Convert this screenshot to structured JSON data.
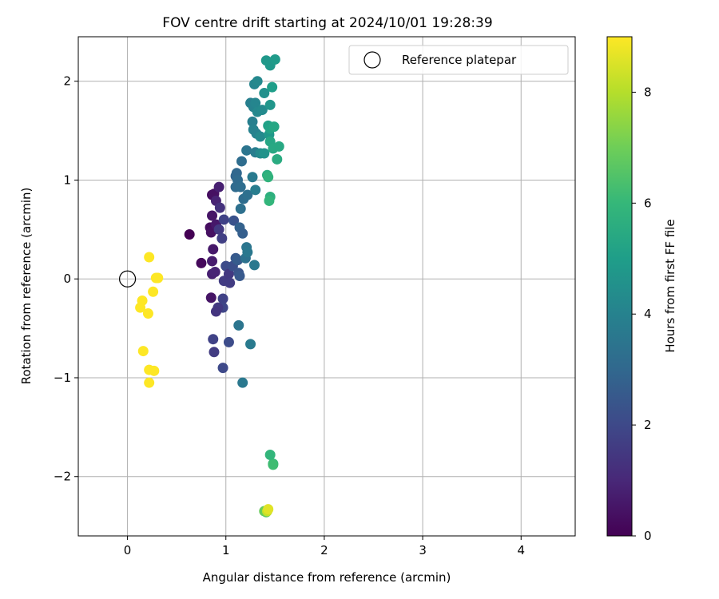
{
  "chart_data": {
    "type": "scatter",
    "title": "FOV centre drift starting at 2024/10/01 19:28:39",
    "xlabel": "Angular distance from reference (arcmin)",
    "ylabel": "Rotation from reference (arcmin)",
    "xlim": [
      -0.5,
      4.55
    ],
    "ylim": [
      -2.6,
      2.45
    ],
    "grid": true,
    "x_ticks": [
      {
        "v": 0,
        "label": "0"
      },
      {
        "v": 1,
        "label": "1"
      },
      {
        "v": 2,
        "label": "2"
      },
      {
        "v": 3,
        "label": "3"
      },
      {
        "v": 4,
        "label": "4"
      }
    ],
    "y_ticks": [
      {
        "v": -2,
        "label": "−2"
      },
      {
        "v": -1,
        "label": "−1"
      },
      {
        "v": 0,
        "label": "0"
      },
      {
        "v": 1,
        "label": "1"
      },
      {
        "v": 2,
        "label": "2"
      }
    ],
    "legend": {
      "position": "top-right",
      "label": "Reference platepar",
      "marker": "open-circle"
    },
    "reference_point": {
      "x": 0,
      "y": 0
    },
    "colorbar": {
      "label": "Hours from first FF file",
      "colormap": "viridis",
      "range": [
        0,
        9
      ],
      "ticks": [
        {
          "v": 0,
          "label": "0"
        },
        {
          "v": 2,
          "label": "2"
        },
        {
          "v": 4,
          "label": "4"
        },
        {
          "v": 6,
          "label": "6"
        },
        {
          "v": 8,
          "label": "8"
        }
      ]
    },
    "colormap_stops": [
      "#440154",
      "#482878",
      "#3e4989",
      "#31688e",
      "#26828e",
      "#1f9e89",
      "#35b779",
      "#6ece58",
      "#b5de2b",
      "#fde725"
    ],
    "points": [
      {
        "x": 0.63,
        "y": 0.45,
        "c": 0.0
      },
      {
        "x": 0.86,
        "y": 0.85,
        "c": 0.3
      },
      {
        "x": 0.88,
        "y": 0.86,
        "c": 0.4
      },
      {
        "x": 0.84,
        "y": 0.52,
        "c": 0.3
      },
      {
        "x": 0.85,
        "y": 0.47,
        "c": 0.4
      },
      {
        "x": 0.75,
        "y": 0.16,
        "c": 0.2
      },
      {
        "x": 0.86,
        "y": 0.64,
        "c": 0.5
      },
      {
        "x": 0.9,
        "y": 0.55,
        "c": 0.6
      },
      {
        "x": 0.87,
        "y": 0.3,
        "c": 0.6
      },
      {
        "x": 0.86,
        "y": 0.18,
        "c": 0.7
      },
      {
        "x": 0.86,
        "y": 0.05,
        "c": 0.8
      },
      {
        "x": 0.89,
        "y": 0.07,
        "c": 0.9
      },
      {
        "x": 0.85,
        "y": -0.19,
        "c": 0.5
      },
      {
        "x": 0.93,
        "y": 0.93,
        "c": 0.8
      },
      {
        "x": 0.9,
        "y": 0.79,
        "c": 0.9
      },
      {
        "x": 0.94,
        "y": 0.72,
        "c": 1.3
      },
      {
        "x": 0.93,
        "y": 0.5,
        "c": 1.5
      },
      {
        "x": 0.96,
        "y": 0.41,
        "c": 1.7
      },
      {
        "x": 0.98,
        "y": 0.6,
        "c": 1.8
      },
      {
        "x": 0.98,
        "y": -0.02,
        "c": 1.6
      },
      {
        "x": 0.97,
        "y": -0.2,
        "c": 1.8
      },
      {
        "x": 0.97,
        "y": -0.29,
        "c": 1.9
      },
      {
        "x": 0.92,
        "y": -0.29,
        "c": 1.5
      },
      {
        "x": 0.9,
        "y": -0.33,
        "c": 1.4
      },
      {
        "x": 0.87,
        "y": -0.61,
        "c": 1.8
      },
      {
        "x": 0.88,
        "y": -0.74,
        "c": 1.6
      },
      {
        "x": 0.97,
        "y": -0.9,
        "c": 2.0
      },
      {
        "x": 1.03,
        "y": -0.64,
        "c": 2.1
      },
      {
        "x": 1.0,
        "y": 0.13,
        "c": 2.1
      },
      {
        "x": 1.03,
        "y": 0.05,
        "c": 1.5
      },
      {
        "x": 1.04,
        "y": -0.04,
        "c": 1.6
      },
      {
        "x": 1.07,
        "y": 0.13,
        "c": 2.2
      },
      {
        "x": 1.08,
        "y": 0.59,
        "c": 2.3
      },
      {
        "x": 1.1,
        "y": 0.21,
        "c": 2.5
      },
      {
        "x": 1.12,
        "y": 0.19,
        "c": 2.6
      },
      {
        "x": 1.13,
        "y": 0.06,
        "c": 2.4
      },
      {
        "x": 1.14,
        "y": 0.03,
        "c": 2.5
      },
      {
        "x": 1.14,
        "y": 0.52,
        "c": 2.8
      },
      {
        "x": 1.17,
        "y": 0.46,
        "c": 2.7
      },
      {
        "x": 1.1,
        "y": 1.04,
        "c": 2.9
      },
      {
        "x": 1.11,
        "y": 1.07,
        "c": 3.0
      },
      {
        "x": 1.12,
        "y": 1.0,
        "c": 3.1
      },
      {
        "x": 1.1,
        "y": 0.93,
        "c": 3.1
      },
      {
        "x": 1.15,
        "y": 0.93,
        "c": 3.2
      },
      {
        "x": 1.16,
        "y": 1.19,
        "c": 3.2
      },
      {
        "x": 1.18,
        "y": 0.81,
        "c": 3.2
      },
      {
        "x": 1.22,
        "y": 0.85,
        "c": 3.3
      },
      {
        "x": 1.15,
        "y": 0.71,
        "c": 3.3
      },
      {
        "x": 1.2,
        "y": 0.21,
        "c": 3.4
      },
      {
        "x": 1.21,
        "y": 0.32,
        "c": 3.5
      },
      {
        "x": 1.22,
        "y": 0.27,
        "c": 3.6
      },
      {
        "x": 1.29,
        "y": 0.14,
        "c": 3.6
      },
      {
        "x": 1.13,
        "y": -0.47,
        "c": 3.5
      },
      {
        "x": 1.25,
        "y": -0.66,
        "c": 3.7
      },
      {
        "x": 1.17,
        "y": -1.05,
        "c": 3.6
      },
      {
        "x": 1.21,
        "y": 1.3,
        "c": 3.5
      },
      {
        "x": 1.27,
        "y": 1.03,
        "c": 3.7
      },
      {
        "x": 1.3,
        "y": 0.9,
        "c": 3.8
      },
      {
        "x": 1.3,
        "y": 1.28,
        "c": 3.8
      },
      {
        "x": 1.27,
        "y": 1.59,
        "c": 3.9
      },
      {
        "x": 1.28,
        "y": 1.51,
        "c": 4.0
      },
      {
        "x": 1.31,
        "y": 1.47,
        "c": 4.0
      },
      {
        "x": 1.25,
        "y": 1.78,
        "c": 3.9
      },
      {
        "x": 1.28,
        "y": 1.74,
        "c": 4.0
      },
      {
        "x": 1.3,
        "y": 1.78,
        "c": 4.1
      },
      {
        "x": 1.32,
        "y": 1.69,
        "c": 4.2
      },
      {
        "x": 1.29,
        "y": 1.97,
        "c": 4.1
      },
      {
        "x": 1.32,
        "y": 2.0,
        "c": 4.2
      },
      {
        "x": 1.35,
        "y": 1.44,
        "c": 4.3
      },
      {
        "x": 1.37,
        "y": 1.71,
        "c": 4.3
      },
      {
        "x": 1.39,
        "y": 1.88,
        "c": 4.5
      },
      {
        "x": 1.35,
        "y": 1.27,
        "c": 4.3
      },
      {
        "x": 1.39,
        "y": 1.27,
        "c": 4.6
      },
      {
        "x": 1.41,
        "y": 2.21,
        "c": 4.8
      },
      {
        "x": 1.45,
        "y": 2.16,
        "c": 4.8
      },
      {
        "x": 1.5,
        "y": 2.22,
        "c": 4.9
      },
      {
        "x": 1.45,
        "y": 1.76,
        "c": 4.7
      },
      {
        "x": 1.47,
        "y": 1.94,
        "c": 5.0
      },
      {
        "x": 1.44,
        "y": 1.46,
        "c": 4.8
      },
      {
        "x": 1.43,
        "y": 1.55,
        "c": 5.1
      },
      {
        "x": 1.45,
        "y": 1.52,
        "c": 5.2
      },
      {
        "x": 1.49,
        "y": 1.54,
        "c": 5.3
      },
      {
        "x": 1.45,
        "y": 1.39,
        "c": 5.3
      },
      {
        "x": 1.48,
        "y": 1.32,
        "c": 5.4
      },
      {
        "x": 1.54,
        "y": 1.34,
        "c": 5.4
      },
      {
        "x": 1.52,
        "y": 1.21,
        "c": 5.5
      },
      {
        "x": 1.42,
        "y": 1.05,
        "c": 5.6
      },
      {
        "x": 1.43,
        "y": 1.03,
        "c": 5.8
      },
      {
        "x": 1.45,
        "y": 0.83,
        "c": 5.7
      },
      {
        "x": 1.44,
        "y": 0.79,
        "c": 5.9
      },
      {
        "x": 1.45,
        "y": -1.78,
        "c": 5.9
      },
      {
        "x": 1.48,
        "y": -1.87,
        "c": 6.0
      },
      {
        "x": 1.48,
        "y": -1.88,
        "c": 6.2
      },
      {
        "x": 1.41,
        "y": -2.36,
        "c": 6.6
      },
      {
        "x": 1.39,
        "y": -2.35,
        "c": 6.9
      },
      {
        "x": 1.42,
        "y": -2.35,
        "c": 8.2
      },
      {
        "x": 1.43,
        "y": -2.33,
        "c": 8.6
      },
      {
        "x": 0.22,
        "y": 0.22,
        "c": 9.0
      },
      {
        "x": 0.29,
        "y": 0.01,
        "c": 9.0
      },
      {
        "x": 0.31,
        "y": 0.01,
        "c": 9.0
      },
      {
        "x": 0.26,
        "y": -0.13,
        "c": 9.0
      },
      {
        "x": 0.15,
        "y": -0.22,
        "c": 9.0
      },
      {
        "x": 0.13,
        "y": -0.29,
        "c": 9.0
      },
      {
        "x": 0.21,
        "y": -0.35,
        "c": 9.0
      },
      {
        "x": 0.16,
        "y": -0.73,
        "c": 9.0
      },
      {
        "x": 0.22,
        "y": -0.92,
        "c": 9.0
      },
      {
        "x": 0.27,
        "y": -0.93,
        "c": 9.0
      },
      {
        "x": 0.22,
        "y": -1.05,
        "c": 9.0
      }
    ]
  }
}
